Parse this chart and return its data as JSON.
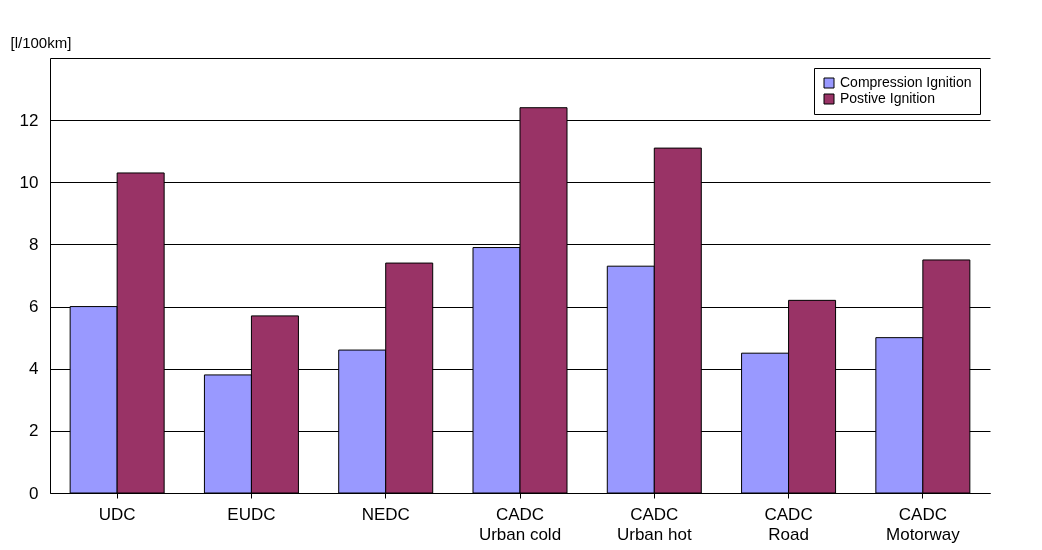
{
  "chart_data": {
    "type": "bar",
    "ylabel": "[l/100km]",
    "categories": [
      "UDC",
      "EUDC",
      "NEDC",
      "CADC\nUrban cold",
      "CADC\nUrban hot",
      "CADC\nRoad",
      "CADC\nMotorway"
    ],
    "series": [
      {
        "name": "Compression Ignition",
        "color": "#9999ff",
        "values": [
          6.0,
          3.8,
          4.6,
          7.9,
          7.3,
          4.5,
          5.0
        ]
      },
      {
        "name": "Postive Ignition",
        "color": "#993366",
        "values": [
          10.3,
          5.7,
          7.4,
          12.4,
          11.1,
          6.2,
          7.5
        ]
      }
    ],
    "ylim": [
      0,
      14
    ],
    "yticks": [
      0,
      2,
      4,
      6,
      8,
      10,
      12,
      {
        "value": 14,
        "label": null
      }
    ],
    "grid": "y",
    "legend": "top right"
  }
}
